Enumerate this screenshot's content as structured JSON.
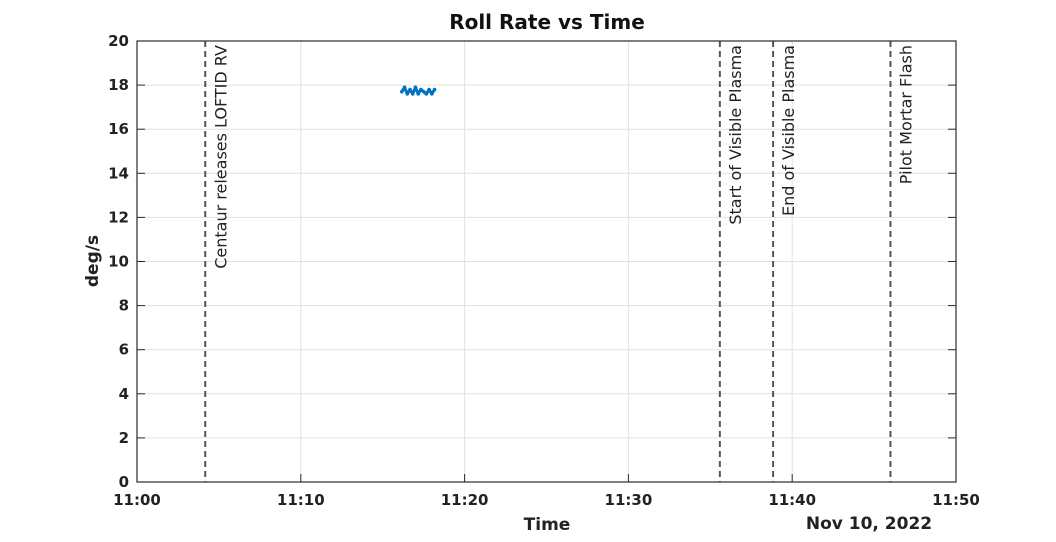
{
  "chart_data": {
    "type": "line",
    "title": "Roll Rate vs Time",
    "xlabel": "Time",
    "ylabel": "deg/s",
    "date_label": "Nov 10, 2022",
    "x_ticks": [
      "11:00",
      "11:10",
      "11:20",
      "11:30",
      "11:40",
      "11:50"
    ],
    "x_tick_minutes": [
      0,
      10,
      20,
      30,
      40,
      50
    ],
    "xlim": [
      "11:00",
      "11:50"
    ],
    "xlim_minutes": [
      0,
      50
    ],
    "ylim": [
      0,
      20
    ],
    "y_ticks": [
      0,
      2,
      4,
      6,
      8,
      10,
      12,
      14,
      16,
      18,
      20
    ],
    "grid": true,
    "series": [
      {
        "color": "#0072BD",
        "x": [
          "11:16:10",
          "11:16:20",
          "11:16:30",
          "11:16:40",
          "11:16:50",
          "11:17:00",
          "11:17:10",
          "11:17:20",
          "11:17:30",
          "11:17:40",
          "11:17:50",
          "11:18:00",
          "11:18:10"
        ],
        "y": [
          17.7,
          17.9,
          17.6,
          17.8,
          17.6,
          17.9,
          17.6,
          17.8,
          17.7,
          17.6,
          17.8,
          17.6,
          17.8
        ]
      }
    ],
    "events": [
      {
        "label": "Centaur releases LOFTID RV",
        "time": "11:04:10"
      },
      {
        "label": "Start of Visible Plasma",
        "time": "11:35:35"
      },
      {
        "label": "End of Visible Plasma",
        "time": "11:38:50"
      },
      {
        "label": "Pilot Mortar Flash",
        "time": "11:46:00"
      }
    ]
  }
}
